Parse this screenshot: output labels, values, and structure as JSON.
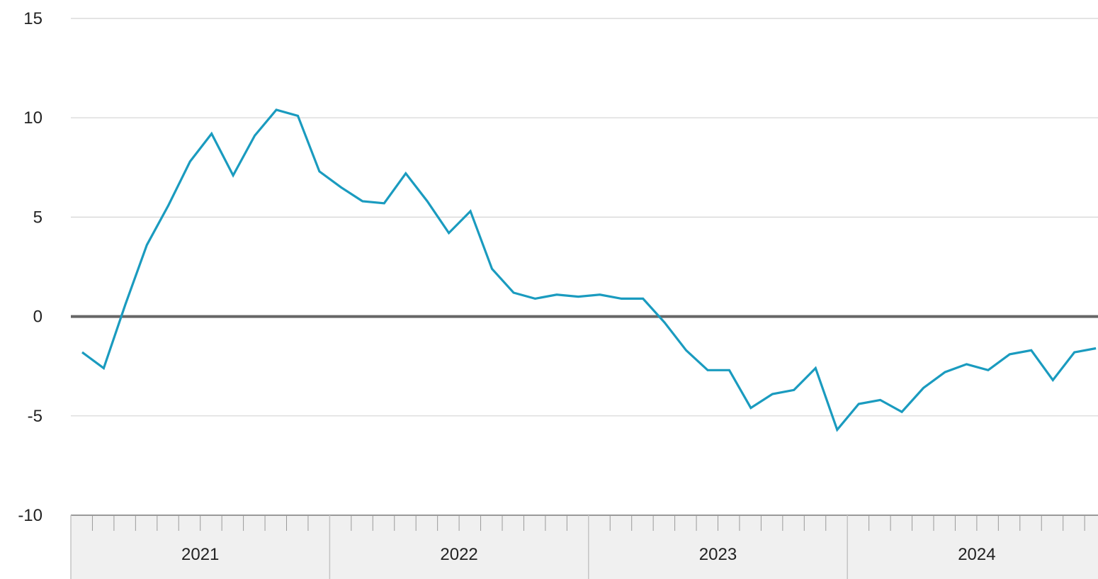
{
  "chart_data": {
    "type": "line",
    "title": "",
    "xlabel": "",
    "ylabel": "",
    "ylim": [
      -10,
      15
    ],
    "yticks": [
      15,
      10,
      5,
      0,
      -5,
      -10
    ],
    "grid": true,
    "x_years": [
      "2021",
      "2022",
      "2023",
      "2024"
    ],
    "series": [
      {
        "color": "#1a9bbf",
        "x": [
          "2021-01",
          "2021-02",
          "2021-03",
          "2021-04",
          "2021-05",
          "2021-06",
          "2021-07",
          "2021-08",
          "2021-09",
          "2021-10",
          "2021-11",
          "2021-12",
          "2022-01",
          "2022-02",
          "2022-03",
          "2022-04",
          "2022-05",
          "2022-06",
          "2022-07",
          "2022-08",
          "2022-09",
          "2022-10",
          "2022-11",
          "2022-12",
          "2023-01",
          "2023-02",
          "2023-03",
          "2023-04",
          "2023-05",
          "2023-06",
          "2023-07",
          "2023-08",
          "2023-09",
          "2023-10",
          "2023-11",
          "2023-12",
          "2024-01",
          "2024-02",
          "2024-03",
          "2024-04",
          "2024-05",
          "2024-06",
          "2024-07",
          "2024-08",
          "2024-09",
          "2024-10",
          "2024-11",
          "2024-12"
        ],
        "values": [
          -1.8,
          -2.6,
          0.6,
          3.6,
          5.6,
          7.8,
          9.2,
          7.1,
          9.1,
          10.4,
          10.1,
          7.3,
          6.5,
          5.8,
          5.7,
          7.2,
          5.8,
          4.2,
          5.3,
          2.4,
          1.2,
          0.9,
          1.1,
          1.0,
          1.1,
          0.9,
          0.9,
          -0.3,
          -1.7,
          -2.7,
          -2.7,
          -4.6,
          -3.9,
          -3.7,
          -2.6,
          -5.7,
          -4.4,
          -4.2,
          -4.8,
          -3.6,
          -2.8,
          -2.4,
          -2.7,
          -1.9,
          -1.7,
          -3.2,
          -1.8,
          -1.6
        ]
      }
    ],
    "colors": {
      "line": "#1a9bbf",
      "zero_line": "#666666",
      "grid": "#d4d4d4",
      "axis_band": "#f0f0f0",
      "axis_line": "#9a9a9a"
    }
  }
}
